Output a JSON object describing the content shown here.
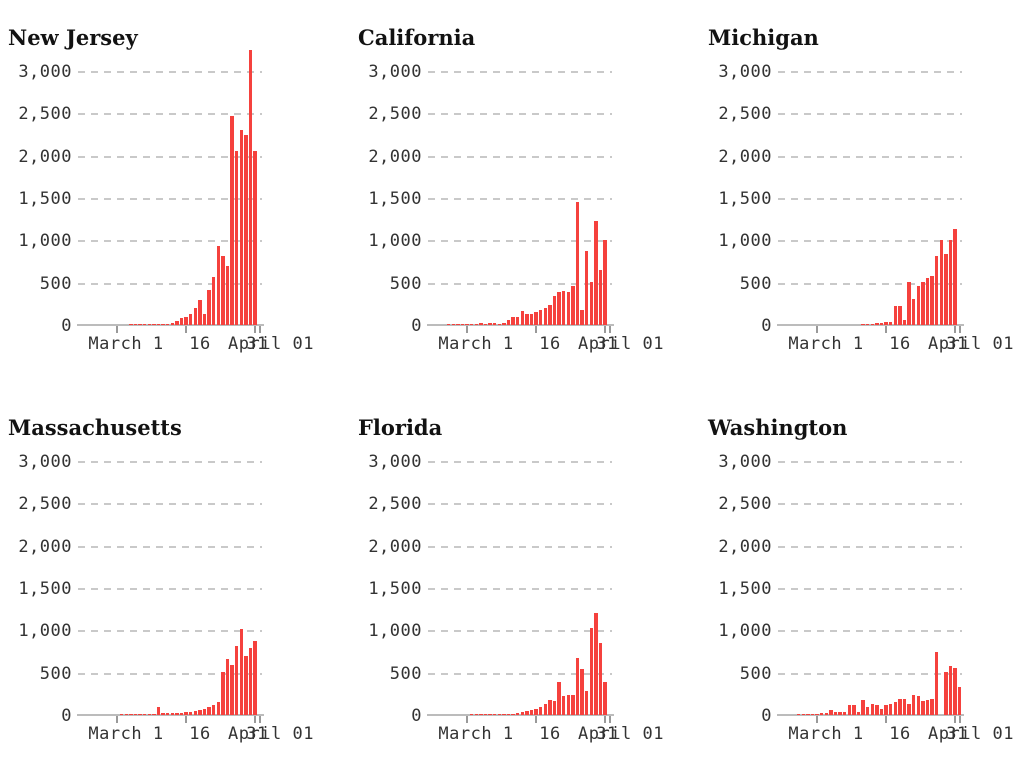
{
  "page": {
    "background": "#ffffff"
  },
  "colors": {
    "bar": "#f5413d",
    "gridline": "#c9c9c9",
    "axis_line": "#bcbcbc",
    "axis_tick": "#999999",
    "tick_label_text": "#333333",
    "title_text": "#121212"
  },
  "chart_data": {
    "type": "bar",
    "layout": "2 rows x 3 columns of small-multiple daily bar charts, shared axes",
    "ylim": [
      0,
      3000
    ],
    "y_ticks": [
      3000,
      2500,
      2000,
      1500,
      1000,
      500,
      0
    ],
    "y_tick_labels": [
      "3,000",
      "2,500",
      "2,000",
      "1,500",
      "1,000",
      "500",
      "0"
    ],
    "x_tick_labels": [
      "March 1",
      "16",
      "31",
      "April 01"
    ],
    "x_tick_day_indices": [
      8,
      23,
      38,
      39
    ],
    "n_days": 40,
    "grid": "dashed horizontal gridlines at each 500 step, solid baseline at 0",
    "note_overlap": "the 31 and April 01 tick labels overlap visually at the right end of each axis",
    "series": [
      {
        "name": "New Jersey",
        "values": [
          0,
          0,
          0,
          0,
          0,
          0,
          0,
          0,
          0,
          0,
          0,
          1,
          2,
          3,
          3,
          4,
          6,
          9,
          10,
          14,
          20,
          45,
          80,
          100,
          135,
          200,
          300,
          135,
          415,
          570,
          930,
          820,
          700,
          2470,
          2060,
          2300,
          2250,
          3250,
          2060,
          0
        ]
      },
      {
        "name": "California",
        "values": [
          0,
          0,
          0,
          0,
          8,
          10,
          8,
          12,
          15,
          10,
          15,
          20,
          15,
          25,
          20,
          15,
          25,
          65,
          90,
          100,
          165,
          135,
          135,
          155,
          180,
          205,
          235,
          345,
          390,
          400,
          390,
          465,
          1450,
          180,
          875,
          510,
          1230,
          650,
          1000,
          0
        ]
      },
      {
        "name": "Michigan",
        "values": [
          0,
          0,
          0,
          0,
          0,
          0,
          0,
          0,
          0,
          0,
          0,
          0,
          0,
          0,
          0,
          0,
          0,
          0,
          5,
          8,
          12,
          20,
          25,
          30,
          35,
          230,
          230,
          60,
          510,
          310,
          460,
          510,
          560,
          575,
          810,
          1010,
          840,
          1010,
          1130,
          0
        ]
      },
      {
        "name": "Massachusetts",
        "values": [
          0,
          0,
          0,
          0,
          0,
          0,
          0,
          0,
          0,
          1,
          1,
          2,
          4,
          8,
          10,
          12,
          15,
          95,
          25,
          20,
          25,
          20,
          25,
          30,
          35,
          45,
          55,
          75,
          95,
          120,
          150,
          505,
          660,
          590,
          810,
          1015,
          700,
          795,
          870,
          0
        ]
      },
      {
        "name": "Florida",
        "values": [
          0,
          0,
          0,
          0,
          0,
          0,
          0,
          0,
          0,
          2,
          2,
          3,
          4,
          4,
          6,
          8,
          10,
          12,
          15,
          20,
          30,
          45,
          60,
          75,
          90,
          130,
          180,
          160,
          390,
          230,
          240,
          240,
          670,
          540,
          285,
          1030,
          1210,
          855,
          390,
          0
        ]
      },
      {
        "name": "Washington",
        "values": [
          0,
          0,
          0,
          0,
          5,
          8,
          10,
          12,
          15,
          20,
          25,
          55,
          30,
          35,
          40,
          120,
          115,
          40,
          175,
          90,
          135,
          120,
          75,
          115,
          125,
          155,
          185,
          190,
          130,
          240,
          225,
          160,
          175,
          190,
          740,
          0,
          510,
          580,
          550,
          335
        ]
      }
    ]
  }
}
